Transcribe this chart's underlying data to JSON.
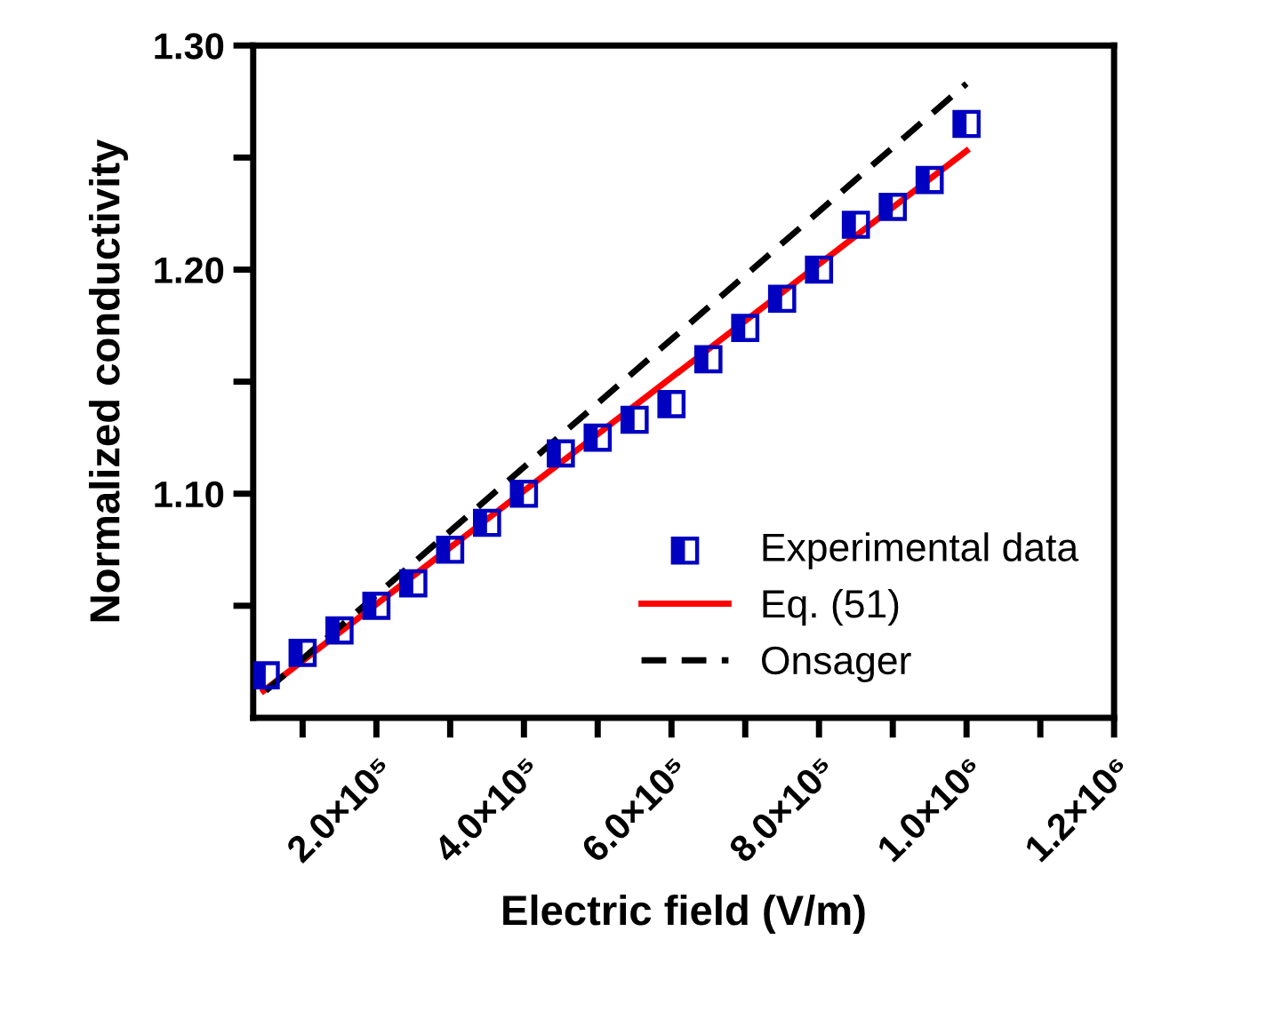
{
  "chart_data": {
    "type": "scatter",
    "xlabel": "Electric field (V/m)",
    "ylabel": "Normalized conductivity",
    "xlim": [
      33000,
      1200000
    ],
    "xticks": [
      {
        "value": 100000,
        "label": null
      },
      {
        "value": 200000,
        "label": "2.0×10⁵"
      },
      {
        "value": 300000,
        "label": null
      },
      {
        "value": 400000,
        "label": "4.0×10⁵"
      },
      {
        "value": 500000,
        "label": null
      },
      {
        "value": 600000,
        "label": "6.0×10⁵"
      },
      {
        "value": 700000,
        "label": null
      },
      {
        "value": 800000,
        "label": "8.0×10⁵"
      },
      {
        "value": 900000,
        "label": null
      },
      {
        "value": 1000000,
        "label": "1.0×10⁶"
      },
      {
        "value": 1100000,
        "label": null
      },
      {
        "value": 1200000,
        "label": "1.2×10⁶"
      }
    ],
    "ylim": [
      1.0,
      1.3
    ],
    "yticks": [
      {
        "value": 1.05,
        "label": null
      },
      {
        "value": 1.1,
        "label": "1.10"
      },
      {
        "value": 1.15,
        "label": null
      },
      {
        "value": 1.2,
        "label": "1.20"
      },
      {
        "value": 1.25,
        "label": null
      },
      {
        "value": 1.3,
        "label": "1.30"
      }
    ],
    "grid": false,
    "legend": "bottom right",
    "series": [
      {
        "name": "Experimental data",
        "marker": "square",
        "color": "#0000c0",
        "x": [
          50000,
          100000,
          150000,
          200000,
          250000,
          300000,
          350000,
          400000,
          450000,
          500000,
          550000,
          600000,
          650000,
          700000,
          750000,
          800000,
          850000,
          900000,
          950000,
          1000000
        ],
        "values": [
          1.019,
          1.029,
          1.039,
          1.05,
          1.06,
          1.075,
          1.087,
          1.1,
          1.118,
          1.125,
          1.133,
          1.14,
          1.16,
          1.174,
          1.187,
          1.2,
          1.22,
          1.228,
          1.24,
          1.265
        ]
      },
      {
        "name": "Eq. (51)",
        "type": "line",
        "marker": "none",
        "line_style": "solid",
        "color": "#ff0000",
        "x": [
          47000,
          1000000
        ],
        "values": [
          1.012,
          1.253
        ]
      },
      {
        "name": "Onsager",
        "type": "line",
        "marker": "none",
        "line_style": "dashed",
        "color": "#000000",
        "x": [
          50000,
          1000000
        ],
        "values": [
          1.012,
          1.283
        ]
      }
    ]
  }
}
